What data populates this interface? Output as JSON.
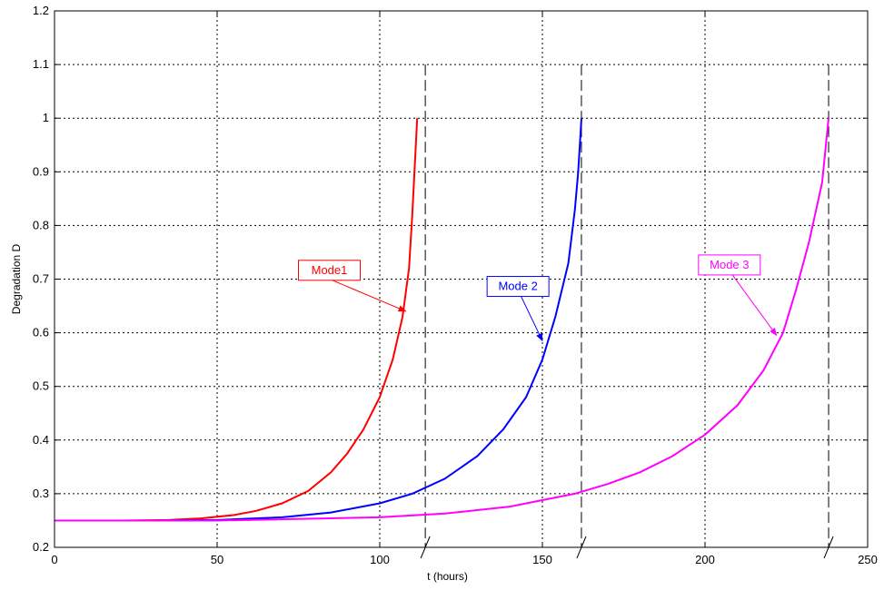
{
  "chart_data": {
    "type": "line",
    "title": "",
    "xlabel": "t (hours)",
    "ylabel": "Degradation D",
    "xlim": [
      0,
      250
    ],
    "ylim": [
      0.2,
      1.2
    ],
    "x_ticks": [
      0,
      50,
      100,
      150,
      200,
      250
    ],
    "y_ticks": [
      0.2,
      0.3,
      0.4,
      0.5,
      0.6,
      0.7,
      0.8,
      0.9,
      1,
      1.1,
      1.2
    ],
    "grid": true,
    "series": [
      {
        "name": "Mode1",
        "color": "#ff0000",
        "x": [
          0,
          20,
          35,
          45,
          55,
          62,
          70,
          78,
          85,
          90,
          95,
          100,
          104,
          107,
          109,
          110,
          111.5
        ],
        "y": [
          0.25,
          0.25,
          0.251,
          0.254,
          0.26,
          0.268,
          0.282,
          0.305,
          0.34,
          0.375,
          0.42,
          0.48,
          0.55,
          0.63,
          0.72,
          0.82,
          1.0
        ]
      },
      {
        "name": "Mode 2",
        "color": "#0000ff",
        "x": [
          0,
          30,
          50,
          70,
          85,
          100,
          110,
          120,
          130,
          138,
          145,
          150,
          154,
          158,
          160,
          161,
          162
        ],
        "y": [
          0.25,
          0.25,
          0.251,
          0.256,
          0.265,
          0.282,
          0.3,
          0.328,
          0.37,
          0.42,
          0.48,
          0.55,
          0.63,
          0.73,
          0.83,
          0.9,
          1.0
        ]
      },
      {
        "name": "Mode 3",
        "color": "#ff00ff",
        "x": [
          0,
          50,
          100,
          120,
          140,
          160,
          170,
          180,
          190,
          200,
          210,
          218,
          224,
          228,
          232,
          236,
          238
        ],
        "y": [
          0.25,
          0.25,
          0.256,
          0.263,
          0.276,
          0.3,
          0.318,
          0.34,
          0.37,
          0.41,
          0.465,
          0.53,
          0.6,
          0.68,
          0.77,
          0.88,
          1.0
        ]
      }
    ],
    "vertical_markers": [
      {
        "x": 114,
        "color": "#000000"
      },
      {
        "x": 162,
        "color": "#000000"
      },
      {
        "x": 238,
        "color": "#000000"
      }
    ],
    "annotations": [
      {
        "text": "Mode1",
        "color": "#ff0000",
        "box": [
          75,
          0.735
        ],
        "arrow_to": [
          108,
          0.64
        ]
      },
      {
        "text": "Mode 2",
        "color": "#0000ff",
        "box": [
          133,
          0.705
        ],
        "arrow_to": [
          150,
          0.585
        ]
      },
      {
        "text": "Mode 3",
        "color": "#ff00ff",
        "box": [
          198,
          0.745
        ],
        "arrow_to": [
          222,
          0.595
        ]
      }
    ]
  }
}
